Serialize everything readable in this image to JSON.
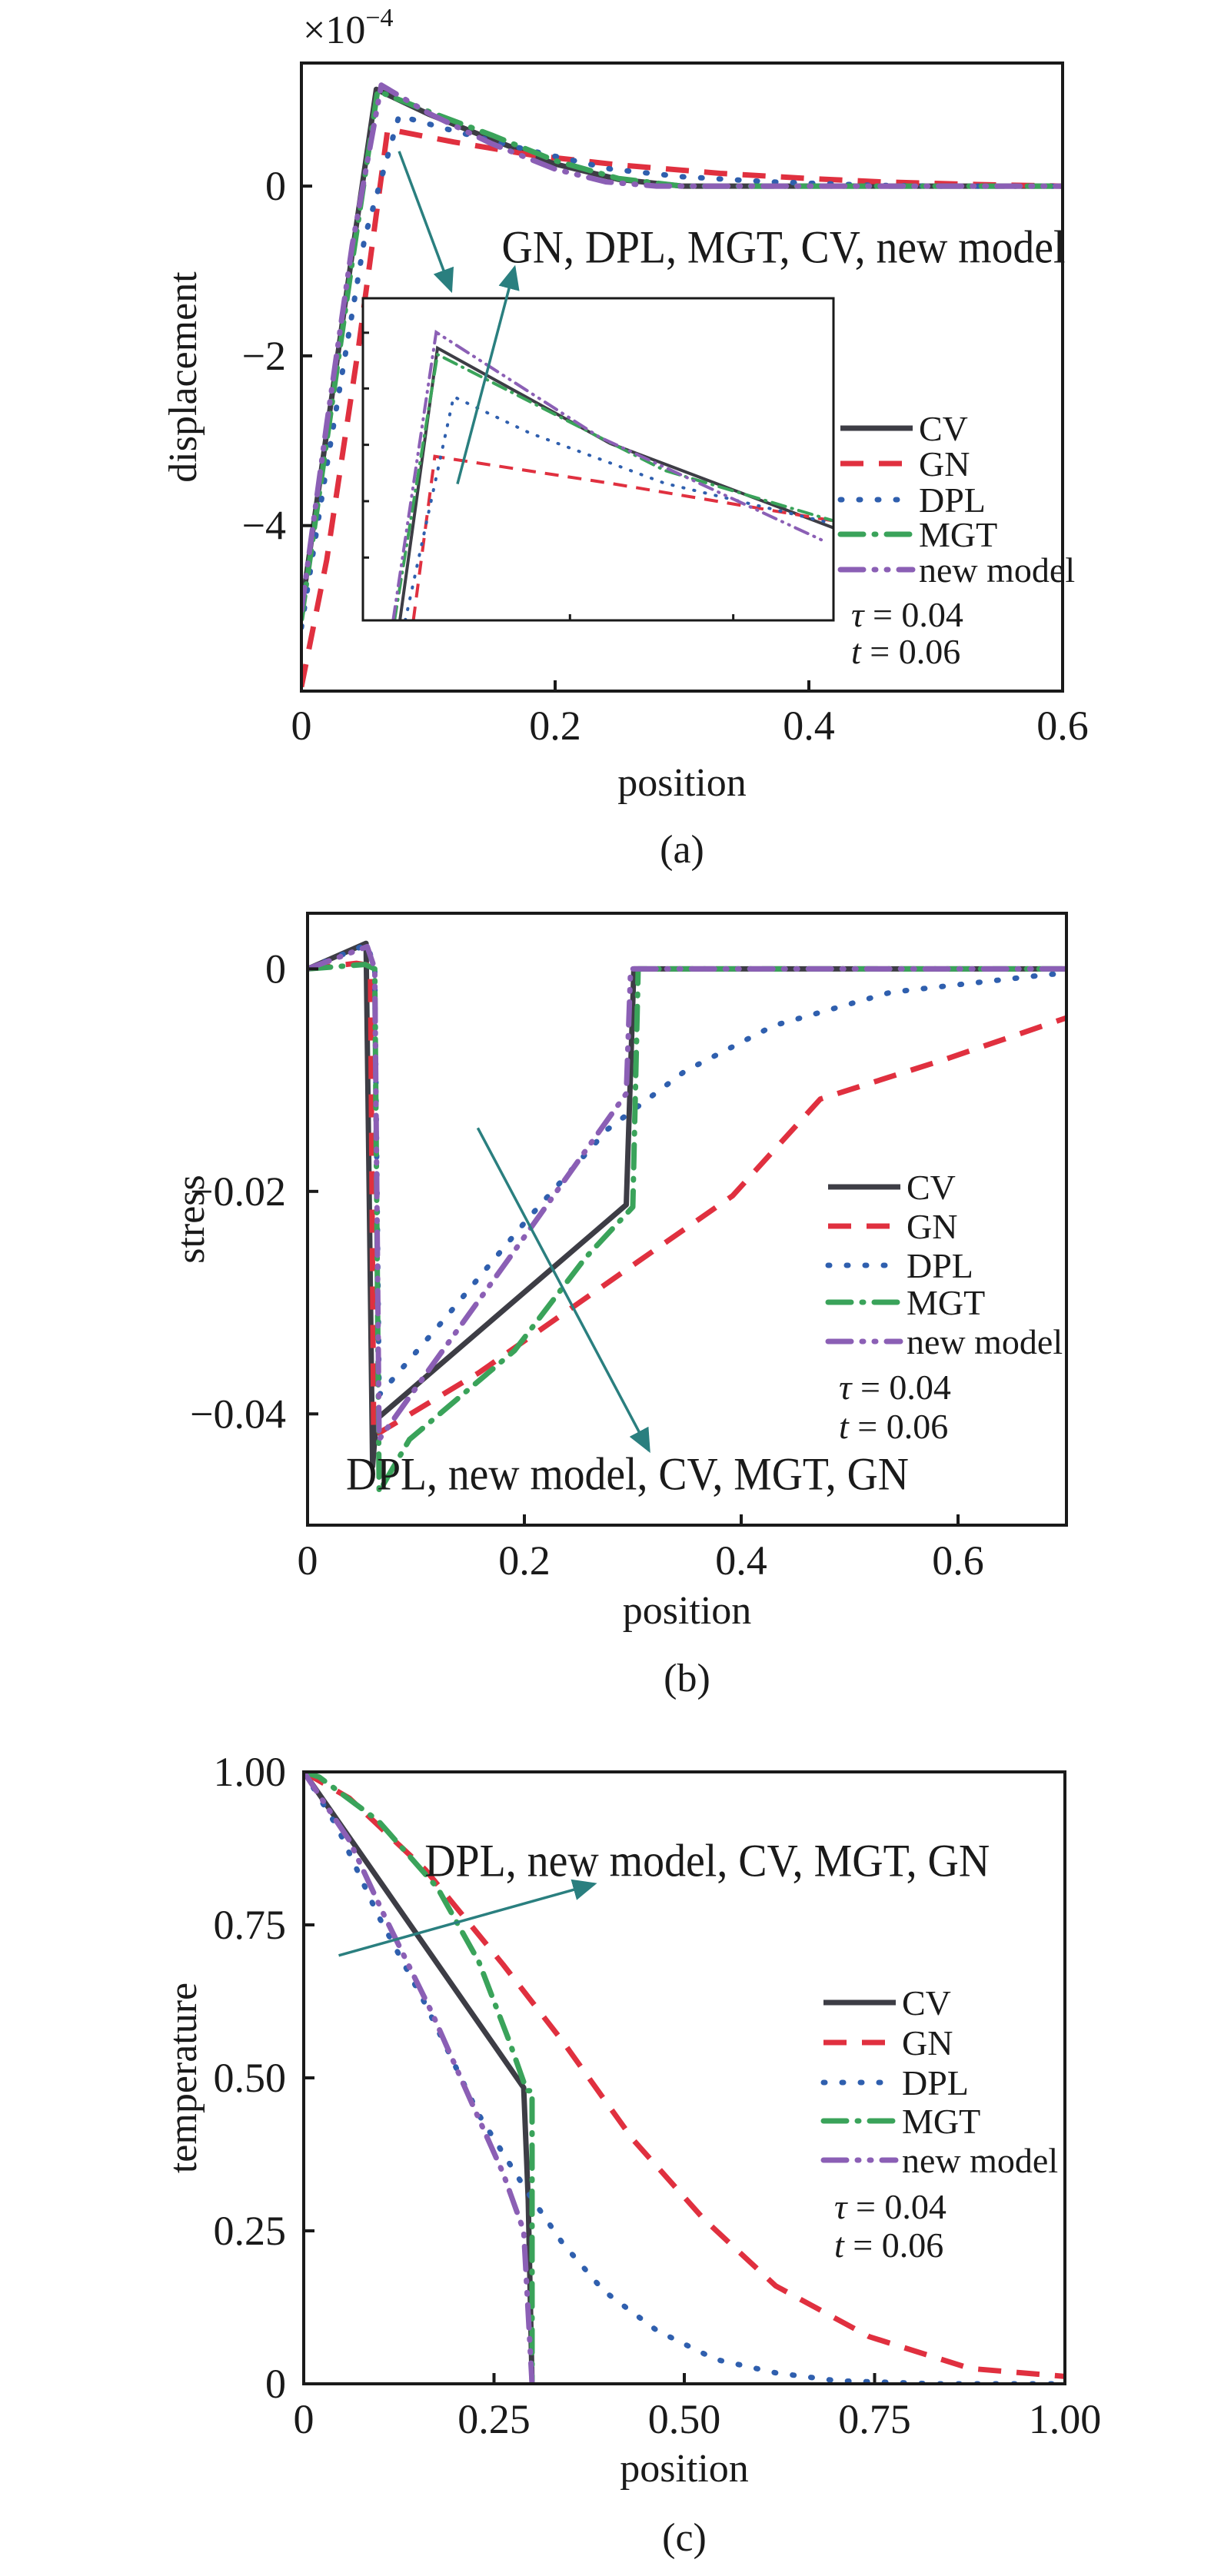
{
  "colors": {
    "CV": "#3d3d45",
    "GN": "#e0303f",
    "DPL": "#2f5fae",
    "MGT": "#3aa35a",
    "new model": "#8b5fb5",
    "arrow": "#2a7f7f"
  },
  "chart_data": [
    {
      "type": "line",
      "panel_label": "(a)",
      "xlabel": "position",
      "ylabel": "displacement",
      "y_multiplier": {
        "base": "×10",
        "exponent": "−4"
      },
      "xlim": [
        0,
        0.6
      ],
      "ylim": [
        -5.95,
        1.45
      ],
      "xticks": [
        0,
        0.2,
        0.4,
        0.6
      ],
      "xtick_labels": [
        "0",
        "0.2",
        "0.4",
        "0.6"
      ],
      "yticks": [
        0,
        -2,
        -4
      ],
      "ytick_labels": [
        "0",
        "−2",
        "−4"
      ],
      "grid": false,
      "legend_placement": "right",
      "params": [
        {
          "symbol": "τ",
          "value": " = 0.04"
        },
        {
          "symbol": "t",
          "value": " = 0.06"
        }
      ],
      "annotation": {
        "text": "GN, DPL, MGT, CV, new model",
        "text_at": [
          0.38,
          -0.72
        ],
        "arrows": [
          {
            "from": [
              0.077,
              0.41
            ],
            "to": [
              0.118,
              -1.23
            ]
          },
          {
            "from": [
              0.123,
              -3.51
            ],
            "to": [
              0.168,
              -0.96
            ]
          }
        ]
      },
      "series": [
        {
          "name": "CV",
          "x": [
            0,
            0.02,
            0.04,
            0.059,
            0.1,
            0.15,
            0.2,
            0.25,
            0.3,
            0.6
          ],
          "y": [
            -5.0,
            -2.9,
            -0.8,
            1.14,
            0.85,
            0.55,
            0.26,
            0.08,
            0,
            0
          ]
        },
        {
          "name": "GN",
          "x": [
            0,
            0.02,
            0.045,
            0.068,
            0.12,
            0.184,
            0.25,
            0.33,
            0.4,
            0.457,
            0.53,
            0.6
          ],
          "y": [
            -5.9,
            -4.4,
            -1.9,
            0.67,
            0.52,
            0.36,
            0.25,
            0.15,
            0.09,
            0.05,
            0.02,
            0.0
          ]
        },
        {
          "name": "DPL",
          "x": [
            0,
            0.02,
            0.05,
            0.077,
            0.12,
            0.18,
            0.244,
            0.3,
            0.37,
            0.45,
            0.5,
            0.6
          ],
          "y": [
            -5.2,
            -3.3,
            -0.6,
            0.83,
            0.65,
            0.42,
            0.2,
            0.11,
            0.05,
            0.01,
            0,
            0
          ]
        },
        {
          "name": "MGT",
          "x": [
            0,
            0.02,
            0.04,
            0.06,
            0.1,
            0.15,
            0.2,
            0.25,
            0.3,
            0.6
          ],
          "y": [
            -5.1,
            -3.0,
            -0.9,
            1.12,
            0.88,
            0.6,
            0.3,
            0.09,
            0,
            0
          ]
        },
        {
          "name": "new model",
          "x": [
            0,
            0.02,
            0.04,
            0.063,
            0.1,
            0.15,
            0.2,
            0.24,
            0.28,
            0.6
          ],
          "y": [
            -5.0,
            -2.8,
            -0.7,
            1.19,
            0.86,
            0.5,
            0.2,
            0.05,
            0,
            0
          ]
        }
      ],
      "inset": {
        "xlim": [
          0.05,
          0.12
        ],
        "ylim": [
          0.7,
          1.25
        ],
        "series": [
          {
            "name": "CV",
            "x": [
              0.0555,
              0.0611,
              0.0868,
              0.12
            ],
            "y": [
              0.7,
              1.165,
              1.002,
              0.858
            ]
          },
          {
            "name": "GN",
            "x": [
              0.0575,
              0.0607,
              0.0868,
              0.12
            ],
            "y": [
              0.7,
              0.98,
              0.934,
              0.87
            ]
          },
          {
            "name": "DPL",
            "x": [
              0.0563,
              0.0635,
              0.0748,
              0.0949,
              0.12
            ],
            "y": [
              0.7,
              1.082,
              1.02,
              0.934,
              0.865
            ]
          },
          {
            "name": "MGT",
            "x": [
              0.0547,
              0.0611,
              0.0949,
              0.12
            ],
            "y": [
              0.7,
              1.154,
              0.956,
              0.87
            ]
          },
          {
            "name": "new model",
            "x": [
              0.0545,
              0.0609,
              0.0852,
              0.1183
            ],
            "y": [
              0.7,
              1.192,
              1.013,
              0.837
            ]
          }
        ]
      }
    },
    {
      "type": "line",
      "panel_label": "(b)",
      "xlabel": "position",
      "ylabel": "stress",
      "xlim": [
        0,
        0.7
      ],
      "ylim": [
        -0.05,
        0.005
      ],
      "xticks": [
        0,
        0.2,
        0.4,
        0.6
      ],
      "xtick_labels": [
        "0",
        "0.2",
        "0.4",
        "0.6"
      ],
      "yticks": [
        0,
        -0.02,
        -0.04
      ],
      "ytick_labels": [
        "0",
        "−0.02",
        "−0.04"
      ],
      "grid": false,
      "legend_placement": "right",
      "params": [
        {
          "symbol": "τ",
          "value": " = 0.04"
        },
        {
          "symbol": "t",
          "value": " = 0.06"
        }
      ],
      "annotation": {
        "text": "DPL, new model, CV, MGT, GN",
        "text_at": [
          0.295,
          -0.0454
        ],
        "arrows": [
          {
            "from": [
              0.157,
              -0.0143
            ],
            "to": [
              0.315,
              -0.0433
            ]
          }
        ]
      },
      "series": [
        {
          "name": "CV",
          "x": [
            0,
            0.054,
            0.06,
            0.0634,
            0.294,
            0.301,
            0.7
          ],
          "y": [
            0,
            0.0023,
            -0.0447,
            -0.0405,
            -0.0212,
            0,
            0
          ]
        },
        {
          "name": "GN",
          "x": [
            0,
            0.045,
            0.058,
            0.061,
            0.158,
            0.305,
            0.392,
            0.473,
            0.589,
            0.7
          ],
          "y": [
            0,
            0.0005,
            0.0003,
            -0.042,
            -0.0363,
            -0.0263,
            -0.0204,
            -0.0117,
            -0.0081,
            -0.0044
          ]
        },
        {
          "name": "DPL",
          "x": [
            0,
            0.055,
            0.062,
            0.066,
            0.126,
            0.202,
            0.277,
            0.348,
            0.43,
            0.538,
            0.684,
            0.7
          ],
          "y": [
            0,
            0.0022,
            0.0,
            -0.0383,
            -0.0315,
            -0.0226,
            -0.0144,
            -0.0092,
            -0.0051,
            -0.0021,
            -0.0005,
            -0.0004
          ]
        },
        {
          "name": "MGT",
          "x": [
            0,
            0.053,
            0.062,
            0.066,
            0.094,
            0.191,
            0.256,
            0.3,
            0.305,
            0.7
          ],
          "y": [
            0,
            0.0004,
            0.0,
            -0.047,
            -0.0423,
            -0.0343,
            -0.026,
            -0.0214,
            0,
            0
          ]
        },
        {
          "name": "new model",
          "x": [
            0,
            0.055,
            0.062,
            0.066,
            0.11,
            0.186,
            0.256,
            0.294,
            0.298,
            0.7
          ],
          "y": [
            0,
            0.002,
            0.0,
            -0.0423,
            -0.0363,
            -0.026,
            -0.0164,
            -0.0112,
            0,
            0
          ]
        }
      ]
    },
    {
      "type": "line",
      "panel_label": "(c)",
      "xlabel": "position",
      "ylabel": "temperature",
      "xlim": [
        0,
        1
      ],
      "ylim": [
        0,
        1
      ],
      "xticks": [
        0,
        0.25,
        0.5,
        0.75,
        1.0
      ],
      "xtick_labels": [
        "0",
        "0.25",
        "0.50",
        "0.75",
        "1.00"
      ],
      "yticks": [
        0,
        0.25,
        0.5,
        0.75,
        1.0
      ],
      "ytick_labels": [
        "0",
        "0.25",
        "0.50",
        "0.75",
        "1.00"
      ],
      "grid": false,
      "legend_placement": "right",
      "params": [
        {
          "symbol": "τ",
          "value": " = 0.04"
        },
        {
          "symbol": "t",
          "value": " = 0.06"
        }
      ],
      "annotation": {
        "text": "DPL, new model, CV, MGT, GN",
        "text_at": [
          0.53,
          0.855
        ],
        "arrows": [
          {
            "from": [
              0.046,
              0.7
            ],
            "to": [
              0.382,
              0.817
            ]
          }
        ]
      },
      "series": [
        {
          "name": "CV",
          "x": [
            0,
            0.289,
            0.295,
            0.3
          ],
          "y": [
            1.0,
            0.484,
            0.3,
            0
          ]
        },
        {
          "name": "GN",
          "x": [
            0,
            0.06,
            0.16,
            0.262,
            0.34,
            0.432,
            0.525,
            0.62,
            0.743,
            0.876,
            1.0
          ],
          "y": [
            1.0,
            0.957,
            0.84,
            0.685,
            0.56,
            0.4,
            0.27,
            0.16,
            0.077,
            0.025,
            0.012
          ]
        },
        {
          "name": "DPL",
          "x": [
            0,
            0.044,
            0.098,
            0.16,
            0.23,
            0.293,
            0.34,
            0.394,
            0.464,
            0.541,
            0.62,
            0.7,
            0.83,
            1.0
          ],
          "y": [
            1.0,
            0.91,
            0.765,
            0.62,
            0.44,
            0.315,
            0.23,
            0.152,
            0.087,
            0.04,
            0.018,
            0.005,
            0,
            0
          ]
        },
        {
          "name": "MGT",
          "x": [
            0,
            0.02,
            0.098,
            0.176,
            0.23,
            0.27,
            0.293,
            0.3,
            0.3
          ],
          "y": [
            1.0,
            0.992,
            0.92,
            0.81,
            0.69,
            0.56,
            0.479,
            0.479,
            0
          ]
        },
        {
          "name": "new model",
          "x": [
            0,
            0.06,
            0.106,
            0.169,
            0.215,
            0.262,
            0.289,
            0.3
          ],
          "y": [
            1.0,
            0.888,
            0.765,
            0.605,
            0.475,
            0.344,
            0.25,
            0
          ]
        }
      ]
    }
  ]
}
